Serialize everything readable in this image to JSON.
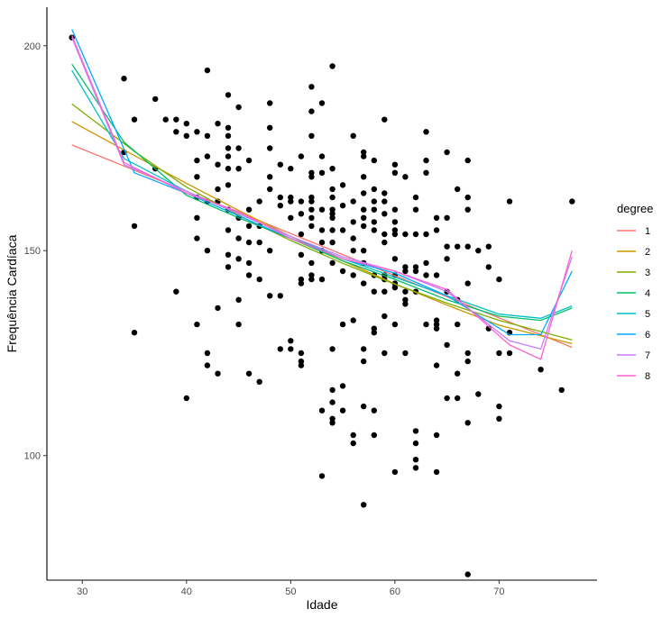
{
  "chart_data": {
    "type": "scatter",
    "xlabel": "Idade",
    "ylabel": "Frequência Cardíaca",
    "xlim": [
      26.6,
      79.4
    ],
    "ylim": [
      69.6,
      209.4
    ],
    "x_ticks": [
      30,
      40,
      50,
      60,
      70
    ],
    "y_ticks": [
      100,
      150,
      200
    ],
    "grid": false,
    "legend": {
      "title": "degree",
      "position": "right"
    },
    "points": [
      [
        29,
        202
      ],
      [
        34,
        192
      ],
      [
        34,
        174
      ],
      [
        35,
        182
      ],
      [
        35,
        156
      ],
      [
        35,
        130
      ],
      [
        37,
        187
      ],
      [
        37,
        170
      ],
      [
        38,
        182
      ],
      [
        39,
        182
      ],
      [
        39,
        179
      ],
      [
        39,
        140
      ],
      [
        40,
        181
      ],
      [
        40,
        178
      ],
      [
        40,
        114
      ],
      [
        41,
        179
      ],
      [
        41,
        172
      ],
      [
        41,
        168
      ],
      [
        41,
        163
      ],
      [
        41,
        158
      ],
      [
        41,
        153
      ],
      [
        41,
        132
      ],
      [
        42,
        194
      ],
      [
        42,
        178
      ],
      [
        42,
        173
      ],
      [
        42,
        162
      ],
      [
        42,
        150
      ],
      [
        42,
        125
      ],
      [
        42,
        122
      ],
      [
        43,
        181
      ],
      [
        43,
        171
      ],
      [
        43,
        165
      ],
      [
        43,
        162
      ],
      [
        43,
        136
      ],
      [
        43,
        120
      ],
      [
        44,
        188
      ],
      [
        44,
        180
      ],
      [
        44,
        178
      ],
      [
        44,
        175
      ],
      [
        44,
        173
      ],
      [
        44,
        170
      ],
      [
        44,
        166
      ],
      [
        44,
        160
      ],
      [
        44,
        155
      ],
      [
        44,
        149
      ],
      [
        44,
        146
      ],
      [
        45,
        185
      ],
      [
        45,
        175
      ],
      [
        45,
        170
      ],
      [
        45,
        158
      ],
      [
        45,
        153
      ],
      [
        45,
        148
      ],
      [
        45,
        138
      ],
      [
        45,
        132
      ],
      [
        46,
        172
      ],
      [
        46,
        160
      ],
      [
        46,
        156
      ],
      [
        46,
        152
      ],
      [
        46,
        147
      ],
      [
        46,
        144
      ],
      [
        46,
        120
      ],
      [
        47,
        162
      ],
      [
        47,
        156
      ],
      [
        47,
        152
      ],
      [
        47,
        143
      ],
      [
        47,
        118
      ],
      [
        48,
        186
      ],
      [
        48,
        180
      ],
      [
        48,
        175
      ],
      [
        48,
        168
      ],
      [
        48,
        165
      ],
      [
        48,
        150
      ],
      [
        48,
        139
      ],
      [
        49,
        171
      ],
      [
        49,
        163
      ],
      [
        49,
        161
      ],
      [
        49,
        139
      ],
      [
        49,
        126
      ],
      [
        50,
        170
      ],
      [
        50,
        163
      ],
      [
        50,
        162
      ],
      [
        50,
        158
      ],
      [
        50,
        128
      ],
      [
        50,
        126
      ],
      [
        51,
        173
      ],
      [
        51,
        162
      ],
      [
        51,
        159
      ],
      [
        51,
        154
      ],
      [
        51,
        149
      ],
      [
        51,
        143
      ],
      [
        51,
        142
      ],
      [
        51,
        125
      ],
      [
        51,
        123
      ],
      [
        51,
        122
      ],
      [
        52,
        190
      ],
      [
        52,
        184
      ],
      [
        52,
        178
      ],
      [
        52,
        169
      ],
      [
        52,
        168
      ],
      [
        52,
        163
      ],
      [
        52,
        162
      ],
      [
        52,
        160
      ],
      [
        52,
        158
      ],
      [
        52,
        156
      ],
      [
        52,
        147
      ],
      [
        52,
        144
      ],
      [
        52,
        143
      ],
      [
        53,
        186
      ],
      [
        53,
        173
      ],
      [
        53,
        169
      ],
      [
        53,
        160
      ],
      [
        53,
        155
      ],
      [
        53,
        152
      ],
      [
        53,
        150
      ],
      [
        53,
        143
      ],
      [
        53,
        111
      ],
      [
        53,
        95
      ],
      [
        54,
        195
      ],
      [
        54,
        170
      ],
      [
        54,
        165
      ],
      [
        54,
        163
      ],
      [
        54,
        160
      ],
      [
        54,
        159
      ],
      [
        54,
        158
      ],
      [
        54,
        155
      ],
      [
        54,
        152
      ],
      [
        54,
        147
      ],
      [
        54,
        126
      ],
      [
        54,
        116
      ],
      [
        54,
        113
      ],
      [
        54,
        109
      ],
      [
        54,
        108
      ],
      [
        55,
        166
      ],
      [
        55,
        161
      ],
      [
        55,
        155
      ],
      [
        55,
        145
      ],
      [
        55,
        132
      ],
      [
        55,
        117
      ],
      [
        55,
        111
      ],
      [
        56,
        178
      ],
      [
        56,
        162
      ],
      [
        56,
        157
      ],
      [
        56,
        153
      ],
      [
        56,
        150
      ],
      [
        56,
        144
      ],
      [
        56,
        133
      ],
      [
        56,
        105
      ],
      [
        56,
        103
      ],
      [
        57,
        174
      ],
      [
        57,
        173
      ],
      [
        57,
        168
      ],
      [
        57,
        164
      ],
      [
        57,
        160
      ],
      [
        57,
        158
      ],
      [
        57,
        156
      ],
      [
        57,
        150
      ],
      [
        57,
        147
      ],
      [
        57,
        142
      ],
      [
        57,
        126
      ],
      [
        57,
        123
      ],
      [
        57,
        112
      ],
      [
        57,
        88
      ],
      [
        58,
        172
      ],
      [
        58,
        165
      ],
      [
        58,
        162
      ],
      [
        58,
        160
      ],
      [
        58,
        157
      ],
      [
        58,
        155
      ],
      [
        58,
        144
      ],
      [
        58,
        140
      ],
      [
        58,
        131
      ],
      [
        58,
        130
      ],
      [
        58,
        111
      ],
      [
        58,
        105
      ],
      [
        59,
        182
      ],
      [
        59,
        164
      ],
      [
        59,
        162
      ],
      [
        59,
        159
      ],
      [
        59,
        154
      ],
      [
        59,
        152
      ],
      [
        59,
        144
      ],
      [
        59,
        143
      ],
      [
        59,
        140
      ],
      [
        59,
        134
      ],
      [
        59,
        125
      ],
      [
        60,
        171
      ],
      [
        60,
        169
      ],
      [
        60,
        160
      ],
      [
        60,
        157
      ],
      [
        60,
        155
      ],
      [
        60,
        154
      ],
      [
        60,
        148
      ],
      [
        60,
        144
      ],
      [
        60,
        142
      ],
      [
        60,
        141
      ],
      [
        60,
        132
      ],
      [
        60,
        96
      ],
      [
        61,
        168
      ],
      [
        61,
        154
      ],
      [
        61,
        146
      ],
      [
        61,
        145
      ],
      [
        61,
        140
      ],
      [
        61,
        138
      ],
      [
        61,
        137
      ],
      [
        61,
        125
      ],
      [
        62,
        163
      ],
      [
        62,
        160
      ],
      [
        62,
        154
      ],
      [
        62,
        146
      ],
      [
        62,
        145
      ],
      [
        62,
        140
      ],
      [
        62,
        106
      ],
      [
        62,
        103
      ],
      [
        62,
        99
      ],
      [
        62,
        97
      ],
      [
        63,
        179
      ],
      [
        63,
        172
      ],
      [
        63,
        169
      ],
      [
        63,
        154
      ],
      [
        63,
        147
      ],
      [
        63,
        144
      ],
      [
        63,
        132
      ],
      [
        64,
        158
      ],
      [
        64,
        155
      ],
      [
        64,
        144
      ],
      [
        64,
        133
      ],
      [
        64,
        132
      ],
      [
        64,
        131
      ],
      [
        64,
        122
      ],
      [
        64,
        105
      ],
      [
        64,
        96
      ],
      [
        65,
        174
      ],
      [
        65,
        158
      ],
      [
        65,
        151
      ],
      [
        65,
        148
      ],
      [
        65,
        140
      ],
      [
        65,
        127
      ],
      [
        65,
        114
      ],
      [
        66,
        165
      ],
      [
        66,
        151
      ],
      [
        66,
        138
      ],
      [
        66,
        132
      ],
      [
        66,
        120
      ],
      [
        66,
        114
      ],
      [
        67,
        172
      ],
      [
        67,
        163
      ],
      [
        67,
        160
      ],
      [
        67,
        151
      ],
      [
        67,
        142
      ],
      [
        67,
        125
      ],
      [
        67,
        123
      ],
      [
        67,
        108
      ],
      [
        67,
        71
      ],
      [
        68,
        150
      ],
      [
        68,
        115
      ],
      [
        69,
        151
      ],
      [
        69,
        146
      ],
      [
        69,
        131
      ],
      [
        70,
        143
      ],
      [
        70,
        125
      ],
      [
        70,
        112
      ],
      [
        70,
        109
      ],
      [
        71,
        162
      ],
      [
        71,
        130
      ],
      [
        71,
        125
      ],
      [
        74,
        121
      ],
      [
        76,
        116
      ],
      [
        77,
        162
      ]
    ],
    "series": [
      {
        "name": "1",
        "color": "#F8766D",
        "x": [
          29,
          77
        ],
        "y": [
          175.8,
          126.4
        ]
      },
      {
        "name": "2",
        "color": "#CD9600",
        "x": [
          29,
          35,
          40,
          45,
          50,
          55,
          60,
          65,
          70,
          77
        ],
        "y": [
          181.5,
          173.2,
          166.4,
          159.8,
          153.5,
          147.5,
          141.9,
          136.7,
          131.8,
          127.3
        ]
      },
      {
        "name": "3",
        "color": "#7CAE00",
        "x": [
          29,
          35,
          40,
          45,
          50,
          55,
          60,
          65,
          70,
          77
        ],
        "y": [
          185.8,
          174.2,
          165.5,
          158.6,
          152.5,
          146.9,
          141.8,
          137.2,
          133.0,
          128.2
        ]
      },
      {
        "name": "4",
        "color": "#00BE67",
        "x": [
          29,
          34,
          40,
          45,
          50,
          55,
          60,
          65,
          70,
          74,
          77
        ],
        "y": [
          195.5,
          176.5,
          163.5,
          158.0,
          153.0,
          147.5,
          143.0,
          138.0,
          134.0,
          133.0,
          136.0
        ]
      },
      {
        "name": "5",
        "color": "#00BFC4",
        "x": [
          29,
          34,
          40,
          45,
          50,
          55,
          60,
          65,
          70,
          74,
          77
        ],
        "y": [
          194.0,
          172.5,
          164.5,
          159.0,
          153.5,
          148.0,
          143.5,
          139.0,
          134.5,
          133.5,
          136.5
        ]
      },
      {
        "name": "6",
        "color": "#00A9FF",
        "x": [
          29,
          35,
          40,
          45,
          50,
          55,
          60,
          65,
          71,
          74,
          77
        ],
        "y": [
          204.0,
          169.0,
          164.0,
          158.5,
          153.0,
          148.0,
          144.5,
          139.0,
          129.5,
          129.5,
          145.0
        ]
      },
      {
        "name": "7",
        "color": "#C77CFF",
        "x": [
          29,
          34,
          40,
          45,
          50,
          55,
          60,
          65,
          71,
          74,
          77
        ],
        "y": [
          202.0,
          171.0,
          164.5,
          159.0,
          153.5,
          148.5,
          145.0,
          140.0,
          128.0,
          126.0,
          148.5
        ]
      },
      {
        "name": "8",
        "color": "#FF61CC",
        "x": [
          29,
          34,
          40,
          45,
          50,
          55,
          60,
          65,
          71,
          74,
          77
        ],
        "y": [
          202.5,
          171.5,
          164.0,
          159.5,
          153.0,
          148.0,
          145.0,
          140.5,
          127.0,
          123.5,
          150.0
        ]
      }
    ]
  }
}
